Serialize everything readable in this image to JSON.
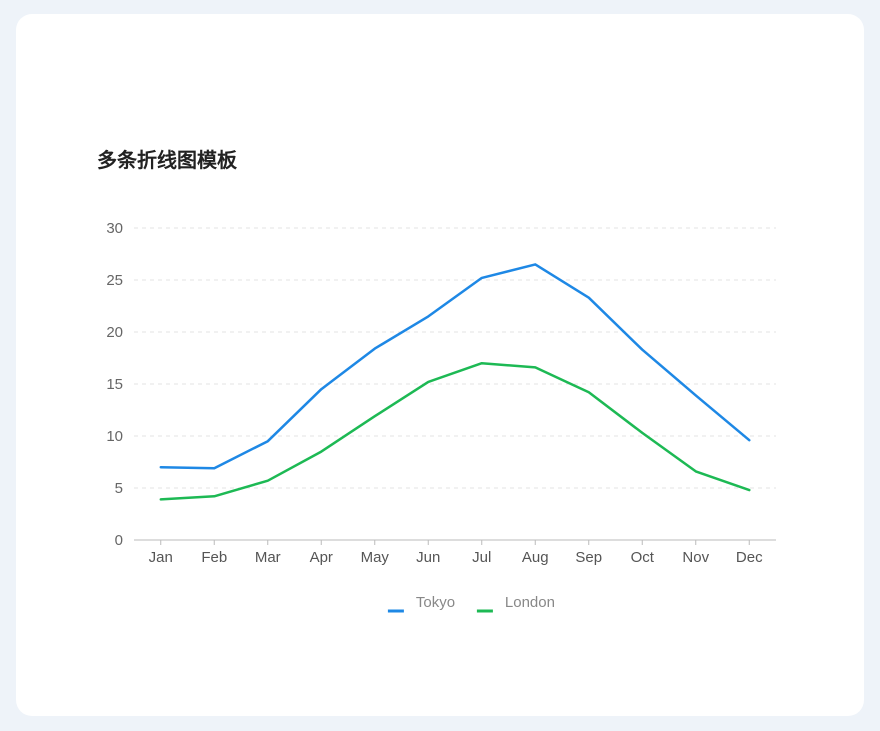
{
  "chart_data": {
    "type": "line",
    "title": "多条折线图模板",
    "xlabel": "",
    "ylabel": "",
    "categories": [
      "Jan",
      "Feb",
      "Mar",
      "Apr",
      "May",
      "Jun",
      "Jul",
      "Aug",
      "Sep",
      "Oct",
      "Nov",
      "Dec"
    ],
    "series": [
      {
        "name": "Tokyo",
        "color": "#1e88e5",
        "values": [
          7.0,
          6.9,
          9.5,
          14.5,
          18.4,
          21.5,
          25.2,
          26.5,
          23.3,
          18.3,
          13.9,
          9.6
        ]
      },
      {
        "name": "London",
        "color": "#1db954",
        "values": [
          3.9,
          4.2,
          5.7,
          8.5,
          11.9,
          15.2,
          17.0,
          16.6,
          14.2,
          10.3,
          6.6,
          4.8
        ]
      }
    ],
    "ylim": [
      0,
      30
    ],
    "yticks": [
      0,
      5,
      10,
      15,
      20,
      25,
      30
    ],
    "grid": true,
    "legend": "bottom-center"
  }
}
